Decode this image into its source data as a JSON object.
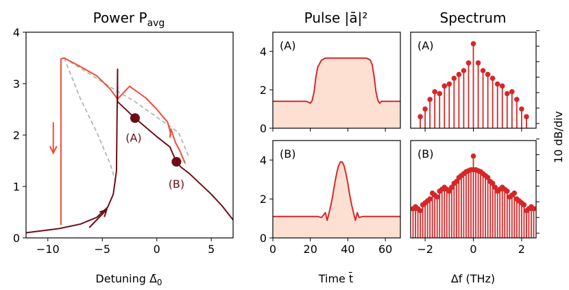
{
  "figure": {
    "panel_titles": [
      "Power P",
      "Pulse |ā|²",
      "Spectrum"
    ],
    "power_title_main": "Power P",
    "power_title_sub": "avg",
    "pulse_title": "Pulse |ā|²",
    "spectrum_title": "Spectrum",
    "power_xlabel_main": "Detuning Δ̄",
    "power_xlabel_sub": "0",
    "pulse_xlabel": "Time t̄",
    "spectrum_xlabel": "Δf (THz)",
    "spectrum_ylabel": "10 dB/div",
    "label_A": "(A)",
    "label_B": "(B)"
  },
  "colors": {
    "light_red": "#f04b36",
    "dark_red": "#6e0b16",
    "pulse_red": "#d62728",
    "pulse_fill": "#fde0d2",
    "dashed_gray": "#b3b3b3"
  },
  "chart_data": [
    {
      "type": "line",
      "title": "Power P_avg",
      "xlabel": "Detuning Δ̄_0",
      "ylabel": "",
      "xlim": [
        -12,
        7
      ],
      "ylim": [
        0,
        4
      ],
      "xticks": [
        -10,
        -5,
        0,
        5
      ],
      "yticks": [
        0,
        1,
        2,
        3,
        4
      ],
      "series": [
        {
          "color": "light_red",
          "points": [
            [
              -8.8,
              0.25
            ],
            [
              -8.8,
              3.48
            ],
            [
              -8.5,
              3.5
            ],
            [
              -7,
              3.33
            ],
            [
              -5.5,
              3.15
            ],
            [
              -4.3,
              2.9
            ],
            [
              -3.6,
              2.7
            ]
          ]
        },
        {
          "color": "light_red",
          "points": [
            [
              -3.6,
              2.7
            ],
            [
              -2.5,
              2.95
            ],
            [
              -1,
              2.72
            ],
            [
              0,
              2.5
            ],
            [
              1,
              2.25
            ],
            [
              1.3,
              2.0
            ]
          ]
        },
        {
          "color": "light_red",
          "points": [
            [
              1.2,
              1.95
            ],
            [
              1.3,
              2.12
            ],
            [
              1.7,
              1.86
            ],
            [
              2.1,
              1.7
            ],
            [
              2.6,
              1.45
            ]
          ]
        },
        {
          "color": "dark_red",
          "points": [
            [
              -12,
              0.1
            ],
            [
              -9,
              0.18
            ],
            [
              -7,
              0.27
            ],
            [
              -5.5,
              0.4
            ],
            [
              -4.5,
              0.6
            ],
            [
              -4,
              0.85
            ],
            [
              -3.7,
              1.3
            ],
            [
              -3.6,
              3.28
            ],
            [
              -3.6,
              2.65
            ],
            [
              -2,
              2.33
            ],
            [
              0,
              1.97
            ],
            [
              1.2,
              1.77
            ],
            [
              1.8,
              1.48
            ],
            [
              2.2,
              1.38
            ],
            [
              3,
              1.25
            ],
            [
              4,
              1.05
            ],
            [
              5,
              0.85
            ],
            [
              6,
              0.62
            ],
            [
              7,
              0.35
            ]
          ]
        }
      ],
      "dashed_series": [
        {
          "color": "dashed_gray",
          "points": [
            [
              -8.5,
              3.5
            ],
            [
              -7,
              3.3
            ],
            [
              -5.5,
              3.1
            ],
            [
              -4,
              2.9
            ],
            [
              -2,
              2.65
            ],
            [
              0,
              2.35
            ],
            [
              2,
              2.05
            ],
            [
              3,
              1.55
            ]
          ]
        },
        {
          "color": "dashed_gray",
          "points": [
            [
              -8.5,
              3.5
            ],
            [
              -7,
              2.7
            ],
            [
              -5.5,
              2.05
            ],
            [
              -4.3,
              1.45
            ],
            [
              -3.7,
              1.05
            ]
          ]
        }
      ],
      "markers": [
        {
          "label": "(A)",
          "x": -2.0,
          "y": 2.33
        },
        {
          "label": "(B)",
          "x": 1.8,
          "y": 1.48
        }
      ],
      "arrows": [
        {
          "color": "light_red",
          "from": [
            -9.5,
            2.25
          ],
          "to": [
            -9.5,
            1.65
          ]
        },
        {
          "color": "dark_red",
          "from": [
            -6.2,
            0.2
          ],
          "to": [
            -4.6,
            0.55
          ]
        }
      ]
    },
    {
      "type": "area",
      "title": "Pulse |ā|² (A)",
      "xlabel": "Time t̄",
      "xlim": [
        0,
        68
      ],
      "ylim": [
        0,
        5
      ],
      "xticks": [
        0,
        20,
        40,
        60
      ],
      "yticks": [
        0,
        2,
        4
      ],
      "x": [
        0,
        18,
        19,
        20,
        21,
        22,
        23,
        24,
        26,
        28,
        30,
        40,
        50,
        52,
        53,
        54,
        55,
        56,
        57,
        58,
        68
      ],
      "y": [
        1.4,
        1.4,
        1.35,
        1.3,
        1.45,
        1.9,
        2.7,
        3.2,
        3.55,
        3.65,
        3.65,
        3.65,
        3.65,
        3.55,
        3.3,
        2.7,
        1.9,
        1.45,
        1.3,
        1.4,
        1.4
      ]
    },
    {
      "type": "area",
      "title": "Pulse |ā|² (B)",
      "xlabel": "Time t̄",
      "xlim": [
        0,
        68
      ],
      "ylim": [
        0,
        5
      ],
      "xticks": [
        0,
        20,
        40,
        60
      ],
      "yticks": [
        0,
        2,
        4
      ],
      "x": [
        0,
        24,
        26,
        28,
        29,
        30,
        31,
        32,
        33,
        34,
        35,
        36,
        37,
        38,
        39,
        40,
        41,
        42,
        43,
        44,
        45,
        46,
        48,
        50,
        52,
        68
      ],
      "y": [
        1.1,
        1.1,
        1.05,
        1.3,
        0.9,
        1.3,
        1.7,
        2.2,
        2.8,
        3.3,
        3.7,
        3.9,
        3.9,
        3.7,
        3.3,
        2.8,
        2.2,
        1.7,
        1.3,
        0.9,
        1.3,
        1.05,
        1.1,
        1.1,
        1.1,
        1.1
      ]
    },
    {
      "type": "bar",
      "title": "Spectrum (A)",
      "xlabel": "Δf (THz)",
      "ylabel": "10 dB/div",
      "xlim": [
        -2.6,
        2.6
      ],
      "ylim": [
        0,
        100
      ],
      "xticks": [
        -2,
        0,
        2
      ],
      "x": [
        -2.2,
        -2.0,
        -1.8,
        -1.6,
        -1.4,
        -1.2,
        -1.0,
        -0.8,
        -0.6,
        -0.4,
        -0.2,
        0.0,
        0.2,
        0.4,
        0.6,
        0.8,
        1.0,
        1.2,
        1.4,
        1.6,
        1.8,
        2.0,
        2.2
      ],
      "values": [
        12,
        20,
        30,
        38,
        36,
        44,
        46,
        52,
        56,
        60,
        68,
        88,
        68,
        60,
        56,
        52,
        46,
        44,
        36,
        38,
        30,
        20,
        12
      ]
    },
    {
      "type": "bar",
      "title": "Spectrum (B)",
      "xlabel": "Δf (THz)",
      "ylabel": "10 dB/div",
      "xlim": [
        -2.6,
        2.6
      ],
      "ylim": [
        0,
        100
      ],
      "xticks": [
        -2,
        0,
        2
      ],
      "x": [
        -2.5,
        -2.4,
        -2.3,
        -2.2,
        -2.1,
        -2.0,
        -1.9,
        -1.8,
        -1.7,
        -1.6,
        -1.5,
        -1.4,
        -1.3,
        -1.2,
        -1.1,
        -1.0,
        -0.9,
        -0.8,
        -0.7,
        -0.6,
        -0.5,
        -0.4,
        -0.3,
        -0.2,
        -0.1,
        0.0,
        0.1,
        0.2,
        0.3,
        0.4,
        0.5,
        0.6,
        0.7,
        0.8,
        0.9,
        1.0,
        1.1,
        1.2,
        1.3,
        1.4,
        1.5,
        1.6,
        1.7,
        1.8,
        1.9,
        2.0,
        2.1,
        2.2,
        2.3,
        2.4,
        2.5
      ],
      "values": [
        30,
        32,
        30,
        28,
        34,
        36,
        38,
        40,
        46,
        44,
        42,
        48,
        50,
        52,
        50,
        48,
        52,
        56,
        58,
        62,
        64,
        66,
        68,
        69,
        70,
        70,
        70,
        69,
        68,
        66,
        64,
        62,
        58,
        56,
        52,
        48,
        50,
        52,
        50,
        48,
        42,
        44,
        46,
        40,
        38,
        36,
        34,
        28,
        30,
        32,
        30
      ],
      "center_spike": 84
    }
  ]
}
